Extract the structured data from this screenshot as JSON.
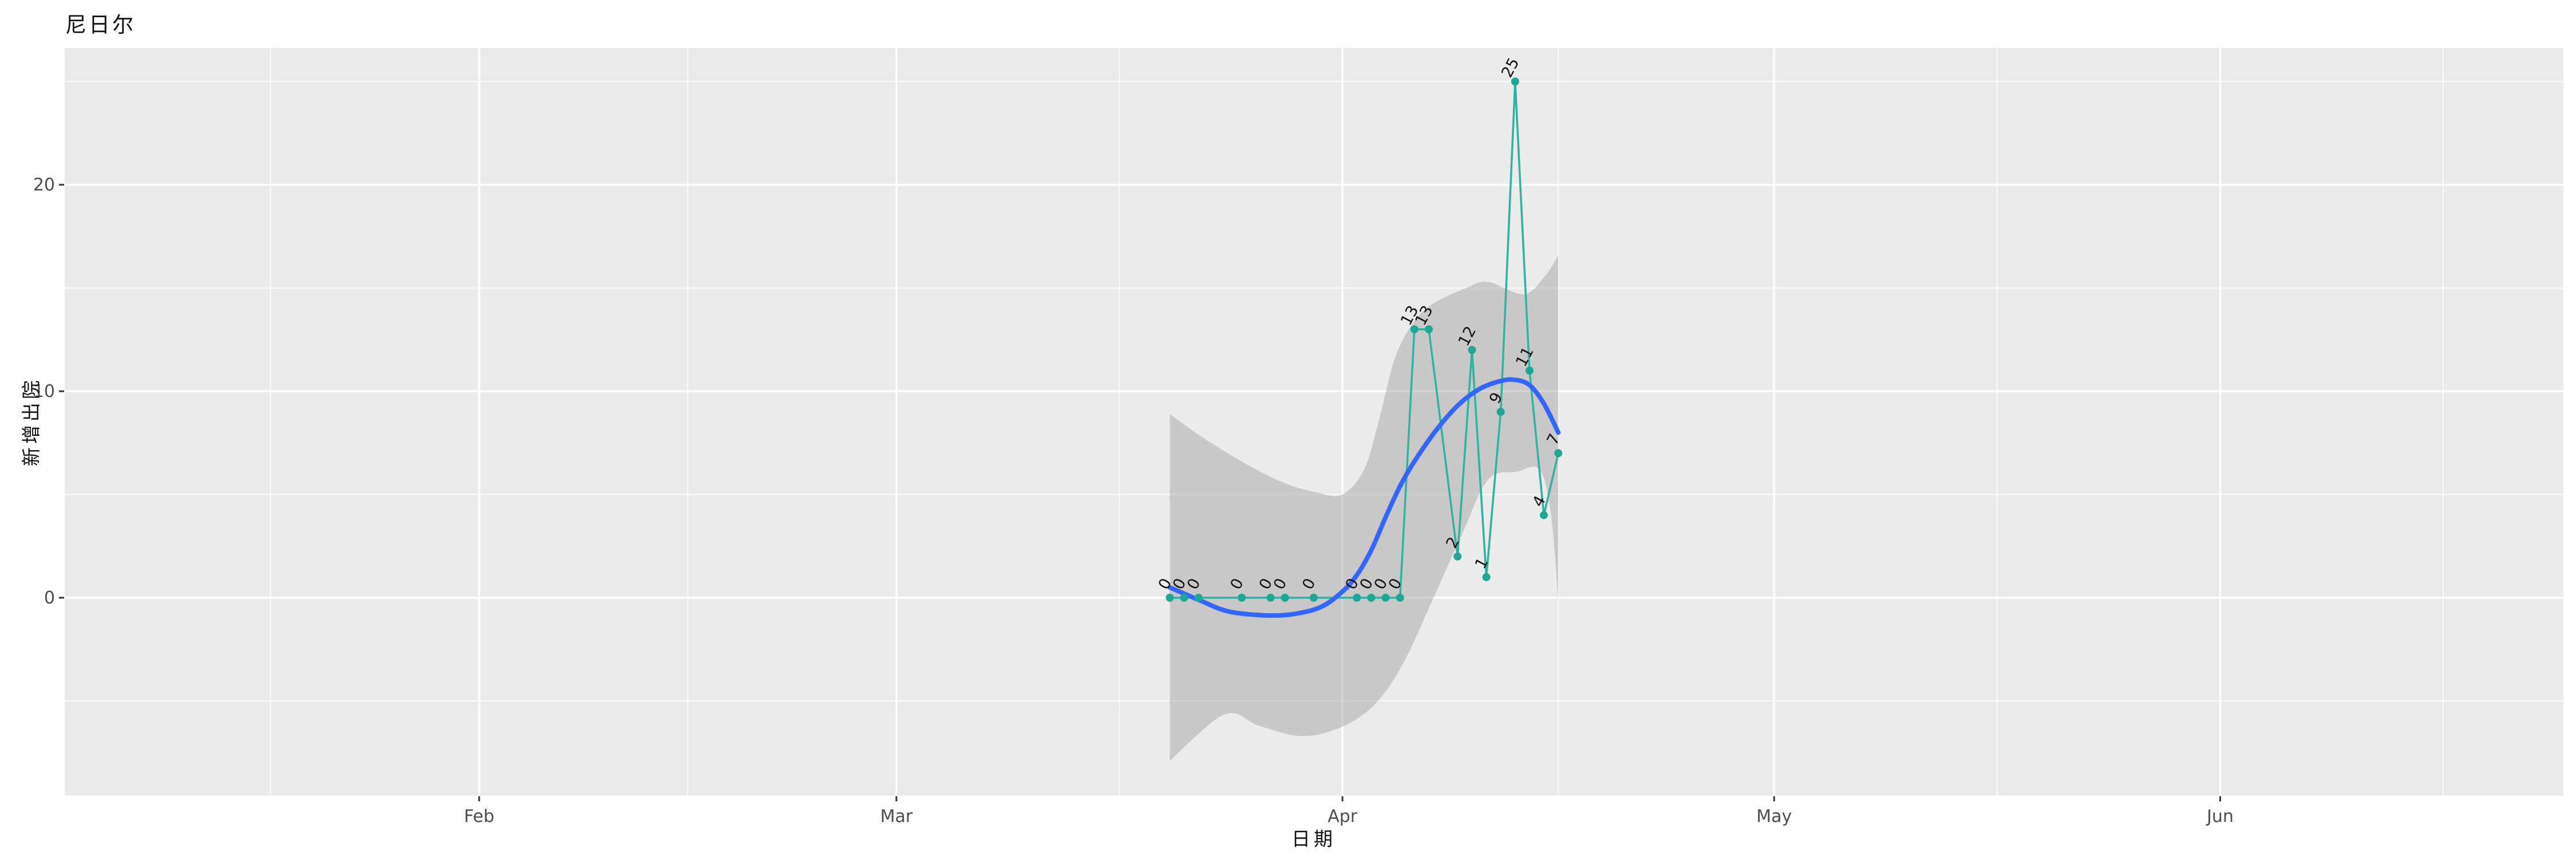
{
  "title": "尼日尔",
  "chart_data": {
    "type": "line",
    "title": "尼日尔",
    "xlabel": "日期",
    "ylabel": "新增出院",
    "legend": "none",
    "grid": "on",
    "panel_color": "#ebebeb",
    "x_axis": {
      "tick_labels": [
        "Feb",
        "Mar",
        "Apr",
        "May",
        "Jun"
      ],
      "tick_dates": [
        "2020-02-01",
        "2020-03-01",
        "2020-04-01",
        "2020-05-01",
        "2020-06-01"
      ],
      "minor_break_days_since_feb1": [
        -14.5,
        14.5,
        44.5,
        75,
        105.5,
        136.5
      ]
    },
    "y_axis": {
      "tick_labels": [
        "0",
        "10",
        "20"
      ],
      "major_values": [
        0,
        10,
        20
      ],
      "minor_values": [
        -5,
        5,
        15,
        25
      ],
      "visible_range": [
        -9.6,
        26.6
      ]
    },
    "points": [
      {
        "date": "2020-03-20",
        "value": 0
      },
      {
        "date": "2020-03-21",
        "value": 0
      },
      {
        "date": "2020-03-22",
        "value": 0
      },
      {
        "date": "2020-03-25",
        "value": 0
      },
      {
        "date": "2020-03-27",
        "value": 0
      },
      {
        "date": "2020-03-28",
        "value": 0
      },
      {
        "date": "2020-03-30",
        "value": 0
      },
      {
        "date": "2020-04-02",
        "value": 0
      },
      {
        "date": "2020-04-03",
        "value": 0
      },
      {
        "date": "2020-04-04",
        "value": 0
      },
      {
        "date": "2020-04-05",
        "value": 0
      },
      {
        "date": "2020-04-06",
        "value": 13
      },
      {
        "date": "2020-04-07",
        "value": 13
      },
      {
        "date": "2020-04-09",
        "value": 2
      },
      {
        "date": "2020-04-10",
        "value": 12
      },
      {
        "date": "2020-04-11",
        "value": 1
      },
      {
        "date": "2020-04-12",
        "value": 9
      },
      {
        "date": "2020-04-13",
        "value": 25
      },
      {
        "date": "2020-04-14",
        "value": 11
      },
      {
        "date": "2020-04-15",
        "value": 4
      },
      {
        "date": "2020-04-16",
        "value": 7
      }
    ],
    "smooth_line_d_v": [
      [
        48,
        0.5
      ],
      [
        50,
        -0.1
      ],
      [
        52,
        -0.65
      ],
      [
        54.5,
        -0.85
      ],
      [
        56.5,
        -0.8
      ],
      [
        58.5,
        -0.45
      ],
      [
        60,
        0.3
      ],
      [
        61,
        1.1
      ],
      [
        62,
        2.3
      ],
      [
        63,
        3.9
      ],
      [
        64,
        5.4
      ],
      [
        65,
        6.6
      ],
      [
        66.5,
        8.1
      ],
      [
        68,
        9.3
      ],
      [
        69.5,
        10.1
      ],
      [
        71,
        10.5
      ],
      [
        72,
        10.55
      ],
      [
        73,
        10.3
      ],
      [
        74,
        9.4
      ],
      [
        75,
        8.0
      ]
    ],
    "ci_band_top_d_v": [
      [
        48,
        8.9
      ],
      [
        50.2,
        7.8
      ],
      [
        53,
        6.6
      ],
      [
        55.8,
        5.6
      ],
      [
        58.2,
        5.1
      ],
      [
        60,
        5.0
      ],
      [
        61.5,
        6.2
      ],
      [
        62.5,
        8.5
      ],
      [
        63.6,
        11.5
      ],
      [
        64.8,
        13.2
      ],
      [
        66.2,
        14.2
      ],
      [
        68.6,
        15.0
      ],
      [
        70.1,
        15.3
      ],
      [
        72.6,
        14.7
      ],
      [
        74.1,
        15.6
      ],
      [
        75,
        16.6
      ]
    ],
    "ci_band_bottom_d_v": [
      [
        48,
        -7.9
      ],
      [
        51.8,
        -5.65
      ],
      [
        54.2,
        -6.2
      ],
      [
        57.1,
        -6.7
      ],
      [
        59.8,
        -6.3
      ],
      [
        62.2,
        -5.2
      ],
      [
        64.2,
        -3.2
      ],
      [
        66.2,
        -0.2
      ],
      [
        68.2,
        2.9
      ],
      [
        70.1,
        5.7
      ],
      [
        72.1,
        6.1
      ],
      [
        73.7,
        6.2
      ],
      [
        74.5,
        4.0
      ],
      [
        75,
        -0.2
      ]
    ],
    "colors": {
      "series_line": "#2cb3a2",
      "series_point": "#1da794",
      "smooth": "#3366ff",
      "band_fill_rgba": "rgba(153,153,153,0.42)",
      "grid": "#ffffff",
      "panel": "#ebebeb",
      "tick_mark": "#333333",
      "tick_label": "#4d4d4d",
      "data_label": "#111111"
    }
  }
}
